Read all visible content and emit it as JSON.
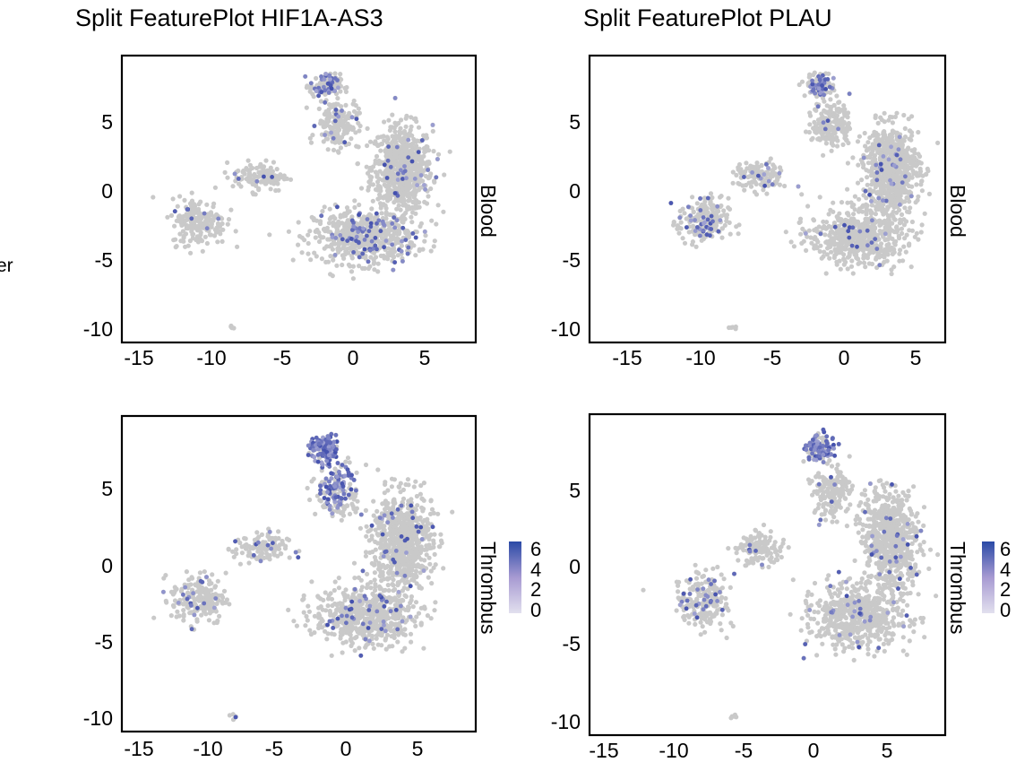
{
  "side_label": "er",
  "colors": {
    "low": "#d9d9e6",
    "high": "#2a4aa6",
    "background_cells": "#c8c8c8",
    "axis": "#000000"
  },
  "chart_data": [
    {
      "type": "scatter",
      "title": "Split FeaturePlot HIF1A-AS3",
      "gene": "HIF1A-AS3",
      "xlim": [
        -15,
        8
      ],
      "ylim": [
        -10,
        9
      ],
      "x_ticks": [
        -15,
        -10,
        -5,
        0,
        5
      ],
      "y_ticks": [
        5,
        0,
        -5,
        -10
      ],
      "panels": [
        {
          "strip_label": "Blood",
          "expressing_fraction": 0.08,
          "hotspots": [
            "UMAP (-1.5, 7) low-moderate",
            "UMAP (3, -3) scattered"
          ]
        },
        {
          "strip_label": "Thrombus",
          "expressing_fraction": 0.3,
          "hotspots": [
            "UMAP (-1.5, 7) high, dense",
            "UMAP (-2.2, 2) high"
          ]
        }
      ],
      "colorbar": {
        "label_ticks": [
          "6",
          "4",
          "2",
          "0"
        ],
        "range": [
          0,
          6
        ]
      }
    },
    {
      "type": "scatter",
      "title": "Split FeaturePlot PLAU",
      "gene": "PLAU",
      "xlim": [
        -18,
        7
      ],
      "ylim": [
        -10,
        9
      ],
      "x_ticks": [
        -15,
        -10,
        -5,
        0,
        5
      ],
      "y_ticks": [
        5,
        0,
        -5,
        -10
      ],
      "panels": [
        {
          "strip_label": "Blood",
          "expressing_fraction": 0.07,
          "hotspots": [
            "UMAP (-1.5, 7) moderate",
            "UMAP (-14, -2) scattered"
          ]
        },
        {
          "strip_label": "Thrombus",
          "expressing_fraction": 0.22,
          "hotspots": [
            "UMAP (-1.5, 7) moderate-high",
            "UMAP (-2.2, 2) moderate"
          ]
        }
      ],
      "colorbar": {
        "label_ticks": [
          "6",
          "4",
          "2",
          "0"
        ],
        "range": [
          0,
          6
        ]
      }
    }
  ]
}
